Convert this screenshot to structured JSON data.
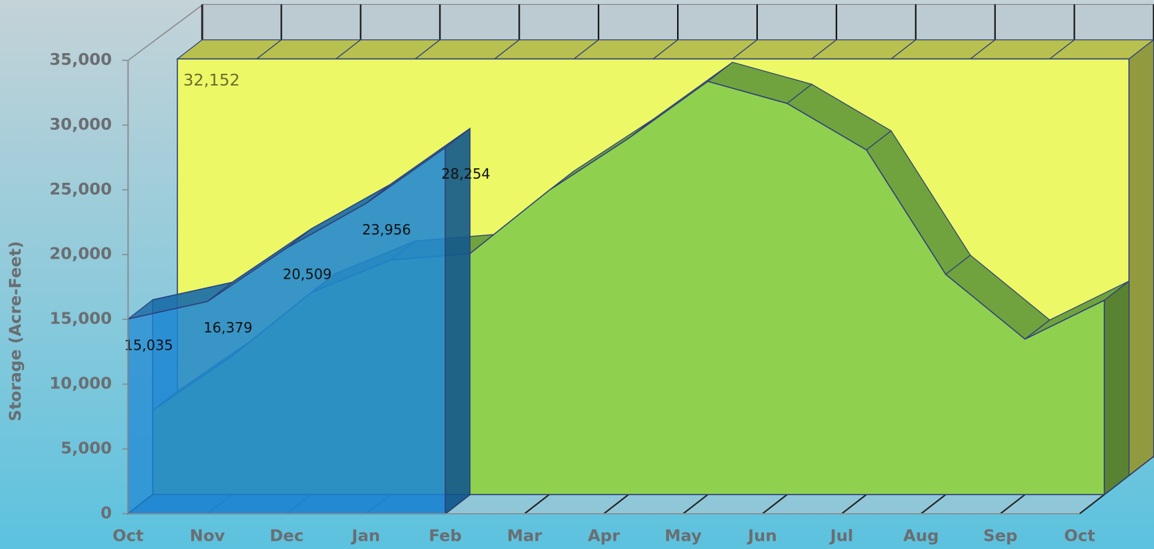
{
  "chart_data": {
    "type": "area3d",
    "y_label": "Storage (Acre-Feet)",
    "categories": [
      "Oct",
      "Nov",
      "Dec",
      "Jan",
      "Feb",
      "Mar",
      "Apr",
      "May",
      "Jun",
      "Jul",
      "Aug",
      "Sep",
      "Oct"
    ],
    "ylim": [
      0,
      35000
    ],
    "yticks": [
      0,
      {
        "value": 5000,
        "label": "5,000"
      },
      {
        "value": 10000,
        "label": "10,000"
      },
      {
        "value": 15000,
        "label": "15,000"
      },
      {
        "value": 20000,
        "label": "20,000"
      },
      {
        "value": 25000,
        "label": "25,000"
      },
      {
        "value": 30000,
        "label": "30,000"
      },
      {
        "value": 35000,
        "label": "35,000"
      }
    ],
    "series": [
      {
        "color": "#1f86d2",
        "values": [
          15035,
          16379,
          20509,
          23956,
          28254,
          null,
          null,
          null,
          null,
          null,
          null,
          null,
          null
        ],
        "value_labels": [
          "15,035",
          "16,379",
          "20,509",
          "23,956",
          "28,254",
          null,
          null,
          null,
          null,
          null,
          null,
          null,
          null
        ]
      },
      {
        "color": "#8fd14f",
        "values": [
          6500,
          10700,
          15600,
          18100,
          18600,
          23500,
          27500,
          31900,
          30200,
          26600,
          17000,
          12000,
          15000
        ]
      },
      {
        "color": "#ecf865",
        "values": [
          32152,
          32152,
          32152,
          32152,
          32152,
          32152,
          32152,
          32152,
          32152,
          32152,
          32152,
          32152,
          32152
        ],
        "value_labels": [
          "32,152",
          null,
          null,
          null,
          null,
          null,
          null,
          null,
          null,
          null,
          null,
          null,
          null
        ]
      }
    ]
  }
}
